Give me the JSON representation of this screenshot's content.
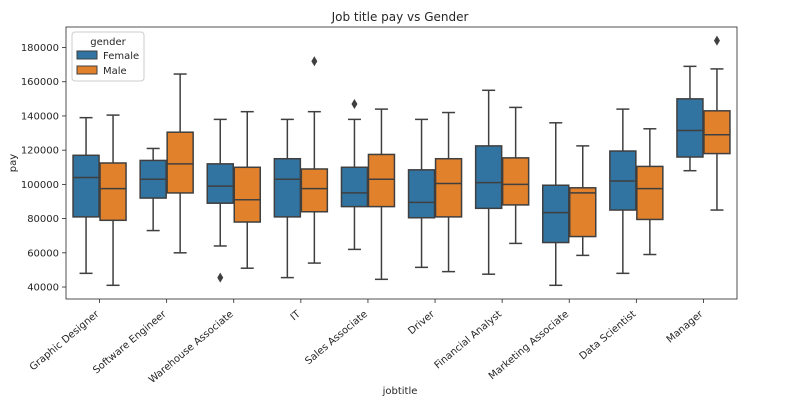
{
  "chart_data": {
    "type": "box",
    "title": "Job title pay vs Gender",
    "xlabel": "jobtitle",
    "ylabel": "pay",
    "ylim": [
      33000,
      192000
    ],
    "yticks": [
      40000,
      60000,
      80000,
      100000,
      120000,
      140000,
      160000,
      180000
    ],
    "categories": [
      "Graphic Designer",
      "Software Engineer",
      "Warehouse Associate",
      "IT",
      "Sales Associate",
      "Driver",
      "Financial Analyst",
      "Marketing Associate",
      "Data Scientist",
      "Manager"
    ],
    "legend": {
      "title": "gender",
      "position": "top-left"
    },
    "series": [
      {
        "name": "Female",
        "color": "#3274a1",
        "boxes": [
          {
            "whislo": 48000,
            "q1": 81000,
            "med": 104000,
            "q3": 117000,
            "whishi": 139000,
            "fliers": []
          },
          {
            "whislo": 73000,
            "q1": 92000,
            "med": 103000,
            "q3": 114000,
            "whishi": 121000,
            "fliers": []
          },
          {
            "whislo": 64000,
            "q1": 89000,
            "med": 99000,
            "q3": 112000,
            "whishi": 138000,
            "fliers": [
              45500
            ]
          },
          {
            "whislo": 45500,
            "q1": 81000,
            "med": 103000,
            "q3": 115000,
            "whishi": 138000,
            "fliers": []
          },
          {
            "whislo": 62000,
            "q1": 87000,
            "med": 95000,
            "q3": 110000,
            "whishi": 138000,
            "fliers": [
              147000
            ]
          },
          {
            "whislo": 51500,
            "q1": 80500,
            "med": 89500,
            "q3": 108500,
            "whishi": 138000,
            "fliers": []
          },
          {
            "whislo": 47500,
            "q1": 86000,
            "med": 101000,
            "q3": 122500,
            "whishi": 155000,
            "fliers": []
          },
          {
            "whislo": 41000,
            "q1": 66000,
            "med": 83500,
            "q3": 99500,
            "whishi": 136000,
            "fliers": []
          },
          {
            "whislo": 48000,
            "q1": 85000,
            "med": 102000,
            "q3": 119500,
            "whishi": 144000,
            "fliers": []
          },
          {
            "whislo": 108000,
            "q1": 116000,
            "med": 131500,
            "q3": 150000,
            "whishi": 169000,
            "fliers": []
          }
        ]
      },
      {
        "name": "Male",
        "color": "#e1812c",
        "boxes": [
          {
            "whislo": 41000,
            "q1": 79000,
            "med": 97500,
            "q3": 112500,
            "whishi": 140500,
            "fliers": []
          },
          {
            "whislo": 60000,
            "q1": 95000,
            "med": 112000,
            "q3": 130500,
            "whishi": 164500,
            "fliers": []
          },
          {
            "whislo": 51000,
            "q1": 78000,
            "med": 91000,
            "q3": 110000,
            "whishi": 142500,
            "fliers": []
          },
          {
            "whislo": 54000,
            "q1": 84000,
            "med": 97500,
            "q3": 109000,
            "whishi": 142500,
            "fliers": [
              172000
            ]
          },
          {
            "whislo": 44500,
            "q1": 87000,
            "med": 103000,
            "q3": 117500,
            "whishi": 144000,
            "fliers": []
          },
          {
            "whislo": 49000,
            "q1": 81000,
            "med": 100500,
            "q3": 115000,
            "whishi": 142000,
            "fliers": []
          },
          {
            "whislo": 65500,
            "q1": 88000,
            "med": 100000,
            "q3": 115500,
            "whishi": 145000,
            "fliers": []
          },
          {
            "whislo": 58500,
            "q1": 69500,
            "med": 95000,
            "q3": 98000,
            "whishi": 122500,
            "fliers": []
          },
          {
            "whislo": 59000,
            "q1": 79500,
            "med": 97500,
            "q3": 110500,
            "whishi": 132500,
            "fliers": []
          },
          {
            "whislo": 85000,
            "q1": 118000,
            "med": 129000,
            "q3": 143000,
            "whishi": 167500,
            "fliers": [
              184000
            ]
          }
        ]
      }
    ],
    "grid": false
  }
}
